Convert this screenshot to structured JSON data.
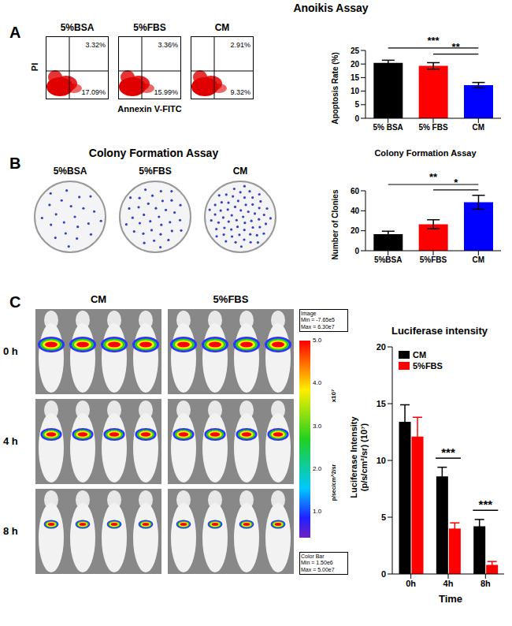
{
  "figure": {
    "A": {
      "label": "A",
      "title": "Anoikis Assay",
      "flow_plots": [
        {
          "name": "5%BSA",
          "upper_right": "3.32%",
          "lower_right": "17.09%"
        },
        {
          "name": "5%FBS",
          "upper_right": "3.36%",
          "lower_right": "15.99%"
        },
        {
          "name": "CM",
          "upper_right": "2.91%",
          "lower_right": "9.32%"
        }
      ],
      "x_axis": "Annexin V-FITC",
      "y_axis": "PI"
    },
    "B": {
      "label": "B",
      "title": "Colony Formation Assay",
      "dishes": [
        "5%BSA",
        "5%FBS",
        "CM"
      ]
    },
    "C": {
      "label": "C",
      "columns": [
        "CM",
        "5%FBS"
      ],
      "rows": [
        "0 h",
        "4 h",
        "8 h"
      ],
      "color_scale": {
        "image_box": [
          "Image",
          "Min = -7.65e5",
          "Max = 6.30e7"
        ],
        "ticks": [
          "5.0",
          "4.0",
          "3.0",
          "2.0",
          "1.0"
        ],
        "multiplier": "x10⁷",
        "unit": "p/sec/cm^2/sr",
        "color_bar_box": [
          "Color Bar",
          "Min = 1.50e6",
          "Max = 5.00e7"
        ]
      }
    }
  },
  "chart_data": [
    {
      "type": "bar",
      "y_label": "Apoptosis Rate (%)",
      "categories": [
        "5% BSA",
        "5% FBS",
        "CM"
      ],
      "values": [
        20.4,
        19.3,
        12.2
      ],
      "errors": [
        1.0,
        1.2,
        1.0
      ],
      "colors": [
        "#000000",
        "#ff0000",
        "#0000ff"
      ],
      "ylim": [
        0,
        25
      ],
      "yticks": [
        0,
        5,
        10,
        15,
        20,
        25
      ],
      "annotations": [
        {
          "from": "5% BSA",
          "to": "CM",
          "text": "***"
        },
        {
          "from": "5% FBS",
          "to": "CM",
          "text": "**"
        }
      ]
    },
    {
      "type": "bar",
      "title": "Colony Formation Assay",
      "y_label": "Number of Clonies",
      "categories": [
        "5%BSA",
        "5%FBS",
        "CM"
      ],
      "values": [
        16.5,
        26.5,
        48.5
      ],
      "errors": [
        3.0,
        4.5,
        7.0
      ],
      "colors": [
        "#000000",
        "#ff0000",
        "#0000ff"
      ],
      "ylim": [
        0,
        60
      ],
      "yticks": [
        0,
        20,
        40,
        60
      ],
      "annotations": [
        {
          "from": "5%BSA",
          "to": "CM",
          "text": "**"
        },
        {
          "from": "5%FBS",
          "to": "CM",
          "text": "*"
        }
      ]
    },
    {
      "type": "bar",
      "title": "Luciferase intensity",
      "x_label": "Time",
      "y_label": [
        "Luciferase Intensity",
        "(p/s/cm²/sr) (10⁷)"
      ],
      "categories": [
        "0h",
        "4h",
        "8h"
      ],
      "series": [
        {
          "name": "CM",
          "color": "#000000",
          "values": [
            13.4,
            8.6,
            4.2
          ],
          "errors": [
            1.5,
            0.8,
            0.6
          ]
        },
        {
          "name": "5%FBS",
          "color": "#ff0000",
          "values": [
            12.1,
            4.0,
            0.8
          ],
          "errors": [
            1.7,
            0.5,
            0.3
          ]
        }
      ],
      "ylim": [
        0,
        20
      ],
      "yticks": [
        0,
        5,
        10,
        15,
        20
      ],
      "legend": "upper left",
      "annotations": [
        {
          "category": "4h",
          "text": "***"
        },
        {
          "category": "8h",
          "text": "***"
        }
      ]
    }
  ]
}
